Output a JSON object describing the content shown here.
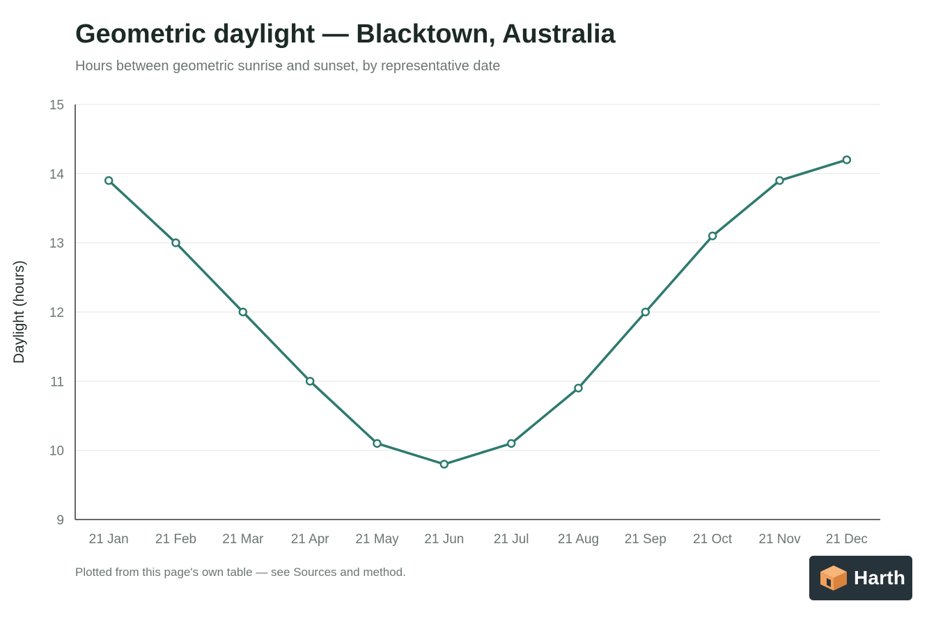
{
  "header": {
    "title": "Geometric daylight — Blacktown, Australia",
    "subtitle": "Hours between geometric sunrise and sunset, by representative date"
  },
  "footnote": "Plotted from this page's own table — see Sources and method.",
  "logo": {
    "text": "Harth",
    "icon": "cube-logo-icon"
  },
  "colors": {
    "line": "#2e7a6e",
    "axis": "#333333",
    "grid": "#e6e6e6",
    "tick_text": "#6b7673",
    "logo_bg": "#27333a",
    "logo_accent": "#f2a05d"
  },
  "chart_data": {
    "type": "line",
    "title": "Geometric daylight — Blacktown, Australia",
    "subtitle": "Hours between geometric sunrise and sunset, by representative date",
    "xlabel": "",
    "ylabel": "Daylight (hours)",
    "categories": [
      "21 Jan",
      "21 Feb",
      "21 Mar",
      "21 Apr",
      "21 May",
      "21 Jun",
      "21 Jul",
      "21 Aug",
      "21 Sep",
      "21 Oct",
      "21 Nov",
      "21 Dec"
    ],
    "series": [
      {
        "values": [
          13.9,
          13.0,
          12.0,
          11.0,
          10.1,
          9.8,
          10.1,
          10.9,
          12.0,
          13.1,
          13.9,
          14.2
        ]
      }
    ],
    "ylim": [
      9,
      15
    ],
    "yticks": [
      9,
      10,
      11,
      12,
      13,
      14,
      15
    ],
    "grid": true,
    "legend": "none",
    "markers": "open-circle"
  }
}
